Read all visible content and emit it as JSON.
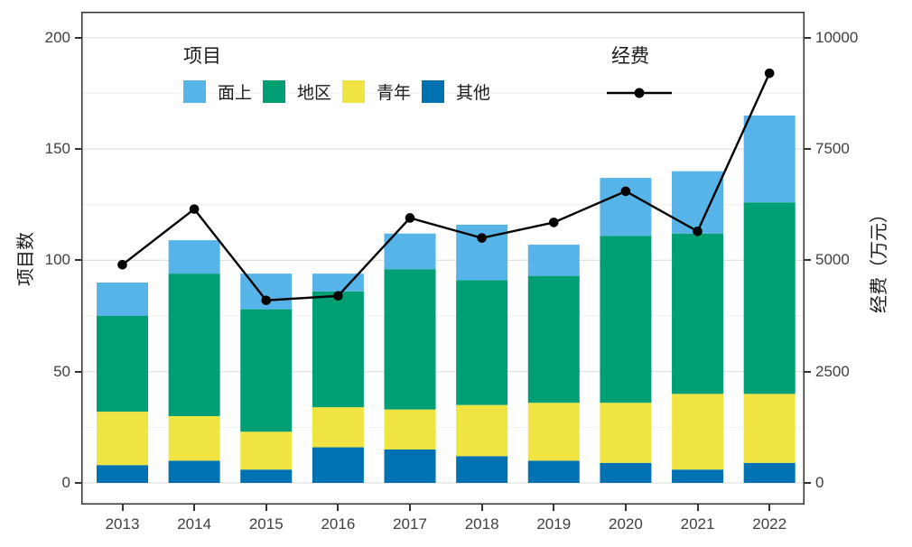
{
  "chart_data": {
    "type": "combo-stacked-bar-with-line-dual-axis",
    "categories": [
      "2013",
      "2014",
      "2015",
      "2016",
      "2017",
      "2018",
      "2019",
      "2020",
      "2021",
      "2022"
    ],
    "bar_series": [
      {
        "name": "其他",
        "color": "#0072B2",
        "values": [
          8,
          10,
          6,
          16,
          15,
          12,
          10,
          9,
          6,
          9
        ]
      },
      {
        "name": "青年",
        "color": "#F0E442",
        "values": [
          24,
          20,
          17,
          18,
          18,
          23,
          26,
          27,
          34,
          31
        ]
      },
      {
        "name": "地区",
        "color": "#009E73",
        "values": [
          43,
          64,
          55,
          52,
          63,
          56,
          57,
          75,
          72,
          86
        ]
      },
      {
        "name": "面上",
        "color": "#56B4E9",
        "values": [
          15,
          15,
          16,
          8,
          16,
          25,
          14,
          26,
          28,
          39
        ]
      }
    ],
    "bar_totals": [
      90,
      109,
      94,
      94,
      112,
      116,
      107,
      137,
      140,
      165
    ],
    "line_series": {
      "name": "经费",
      "color": "#000000",
      "values": [
        4900,
        6150,
        4100,
        4200,
        5950,
        5500,
        5850,
        6550,
        5650,
        9200
      ]
    },
    "left_axis": {
      "label": "项目数",
      "min": 0,
      "max": 200,
      "ticks": [
        0,
        50,
        100,
        150,
        200
      ],
      "minor_step": 25
    },
    "right_axis": {
      "label": "经费（万元）",
      "min": 0,
      "max": 10000,
      "ticks": [
        0,
        2500,
        5000,
        7500,
        10000
      ],
      "scale_factor": 50
    },
    "x_axis": {
      "tick_labels": [
        "2013",
        "2014",
        "2015",
        "2016",
        "2017",
        "2018",
        "2019",
        "2020",
        "2021",
        "2022"
      ]
    },
    "legend": {
      "project_title": "项目",
      "items": [
        "面上",
        "地区",
        "青年",
        "其他"
      ],
      "item_colors": [
        "#56B4E9",
        "#009E73",
        "#F0E442",
        "#0072B2"
      ],
      "funding_title": "经费"
    },
    "style": {
      "grid_major_color": "#e0e0e0",
      "grid_minor_color": "#efefef",
      "panel_border_color": "#333333",
      "line_color": "#000000"
    }
  }
}
